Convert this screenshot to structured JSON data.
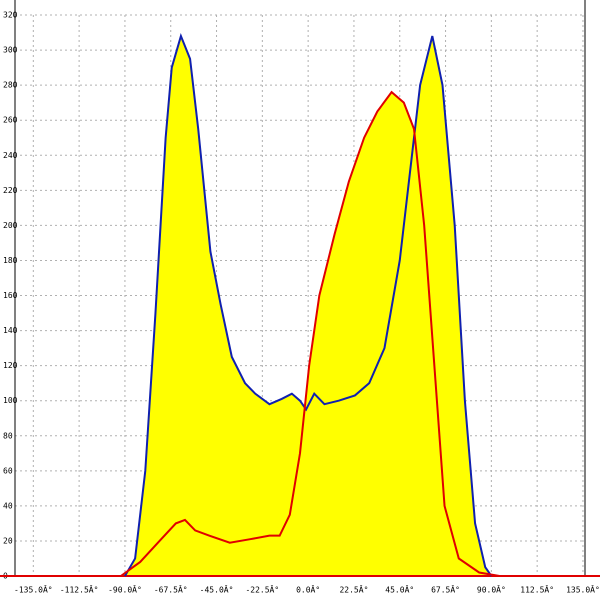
{
  "chart_data": {
    "type": "area-line",
    "xlim": [
      -144,
      136
    ],
    "ylim": [
      0,
      320
    ],
    "xticks": [
      {
        "value": -135,
        "label": "-135.0Â°"
      },
      {
        "value": -112.5,
        "label": "-112.5Â°"
      },
      {
        "value": -90,
        "label": "-90.0Â°"
      },
      {
        "value": -67.5,
        "label": "-67.5Â°"
      },
      {
        "value": -45,
        "label": "-45.0Â°"
      },
      {
        "value": -22.5,
        "label": "-22.5Â°"
      },
      {
        "value": 0,
        "label": "0.0Â°"
      },
      {
        "value": 22.5,
        "label": "22.5Â°"
      },
      {
        "value": 45,
        "label": "45.0Â°"
      },
      {
        "value": 67.5,
        "label": "67.5Â°"
      },
      {
        "value": 90,
        "label": "90.0Â°"
      },
      {
        "value": 112.5,
        "label": "112.5Â°"
      },
      {
        "value": 135,
        "label": "135.0Â°"
      }
    ],
    "yticks": [
      0,
      20,
      40,
      60,
      80,
      100,
      120,
      140,
      160,
      180,
      200,
      220,
      240,
      260,
      280,
      300,
      320
    ],
    "grid": true,
    "fill_color": "#ffff00",
    "axis_color": "#e00000",
    "series": [
      {
        "color": "#1020b0",
        "x": [
          -90,
          -85,
          -80,
          -75,
          -70,
          -67,
          -62.5,
          -58,
          -54,
          -48,
          -43,
          -37.5,
          -31,
          -26,
          -19,
          -13,
          -8,
          -4,
          -1,
          3,
          8,
          15,
          23,
          30,
          37.5,
          45,
          50,
          55,
          61,
          66,
          72,
          77,
          82,
          87,
          90
        ],
        "values": [
          0,
          10,
          60,
          150,
          250,
          290,
          308,
          295,
          255,
          185,
          155,
          125,
          110,
          104,
          98,
          101,
          104,
          100,
          95,
          104,
          98,
          100,
          103,
          110,
          130,
          180,
          230,
          280,
          308,
          280,
          200,
          100,
          30,
          5,
          0
        ]
      },
      {
        "color": "#e00000",
        "x": [
          -92,
          -82.5,
          -73,
          -65,
          -60.5,
          -55.5,
          -48.5,
          -38.5,
          -28.5,
          -19,
          -14,
          -9,
          -4,
          0.5,
          5.5,
          13,
          20,
          27.5,
          34,
          41,
          47,
          52,
          57,
          62,
          67,
          74,
          84,
          94
        ],
        "values": [
          0,
          8,
          20,
          30,
          32,
          26,
          23,
          19,
          21,
          23,
          23,
          35,
          70,
          120,
          160,
          195,
          225,
          250,
          265,
          276,
          270,
          255,
          200,
          120,
          40,
          10,
          2,
          0
        ]
      }
    ]
  }
}
